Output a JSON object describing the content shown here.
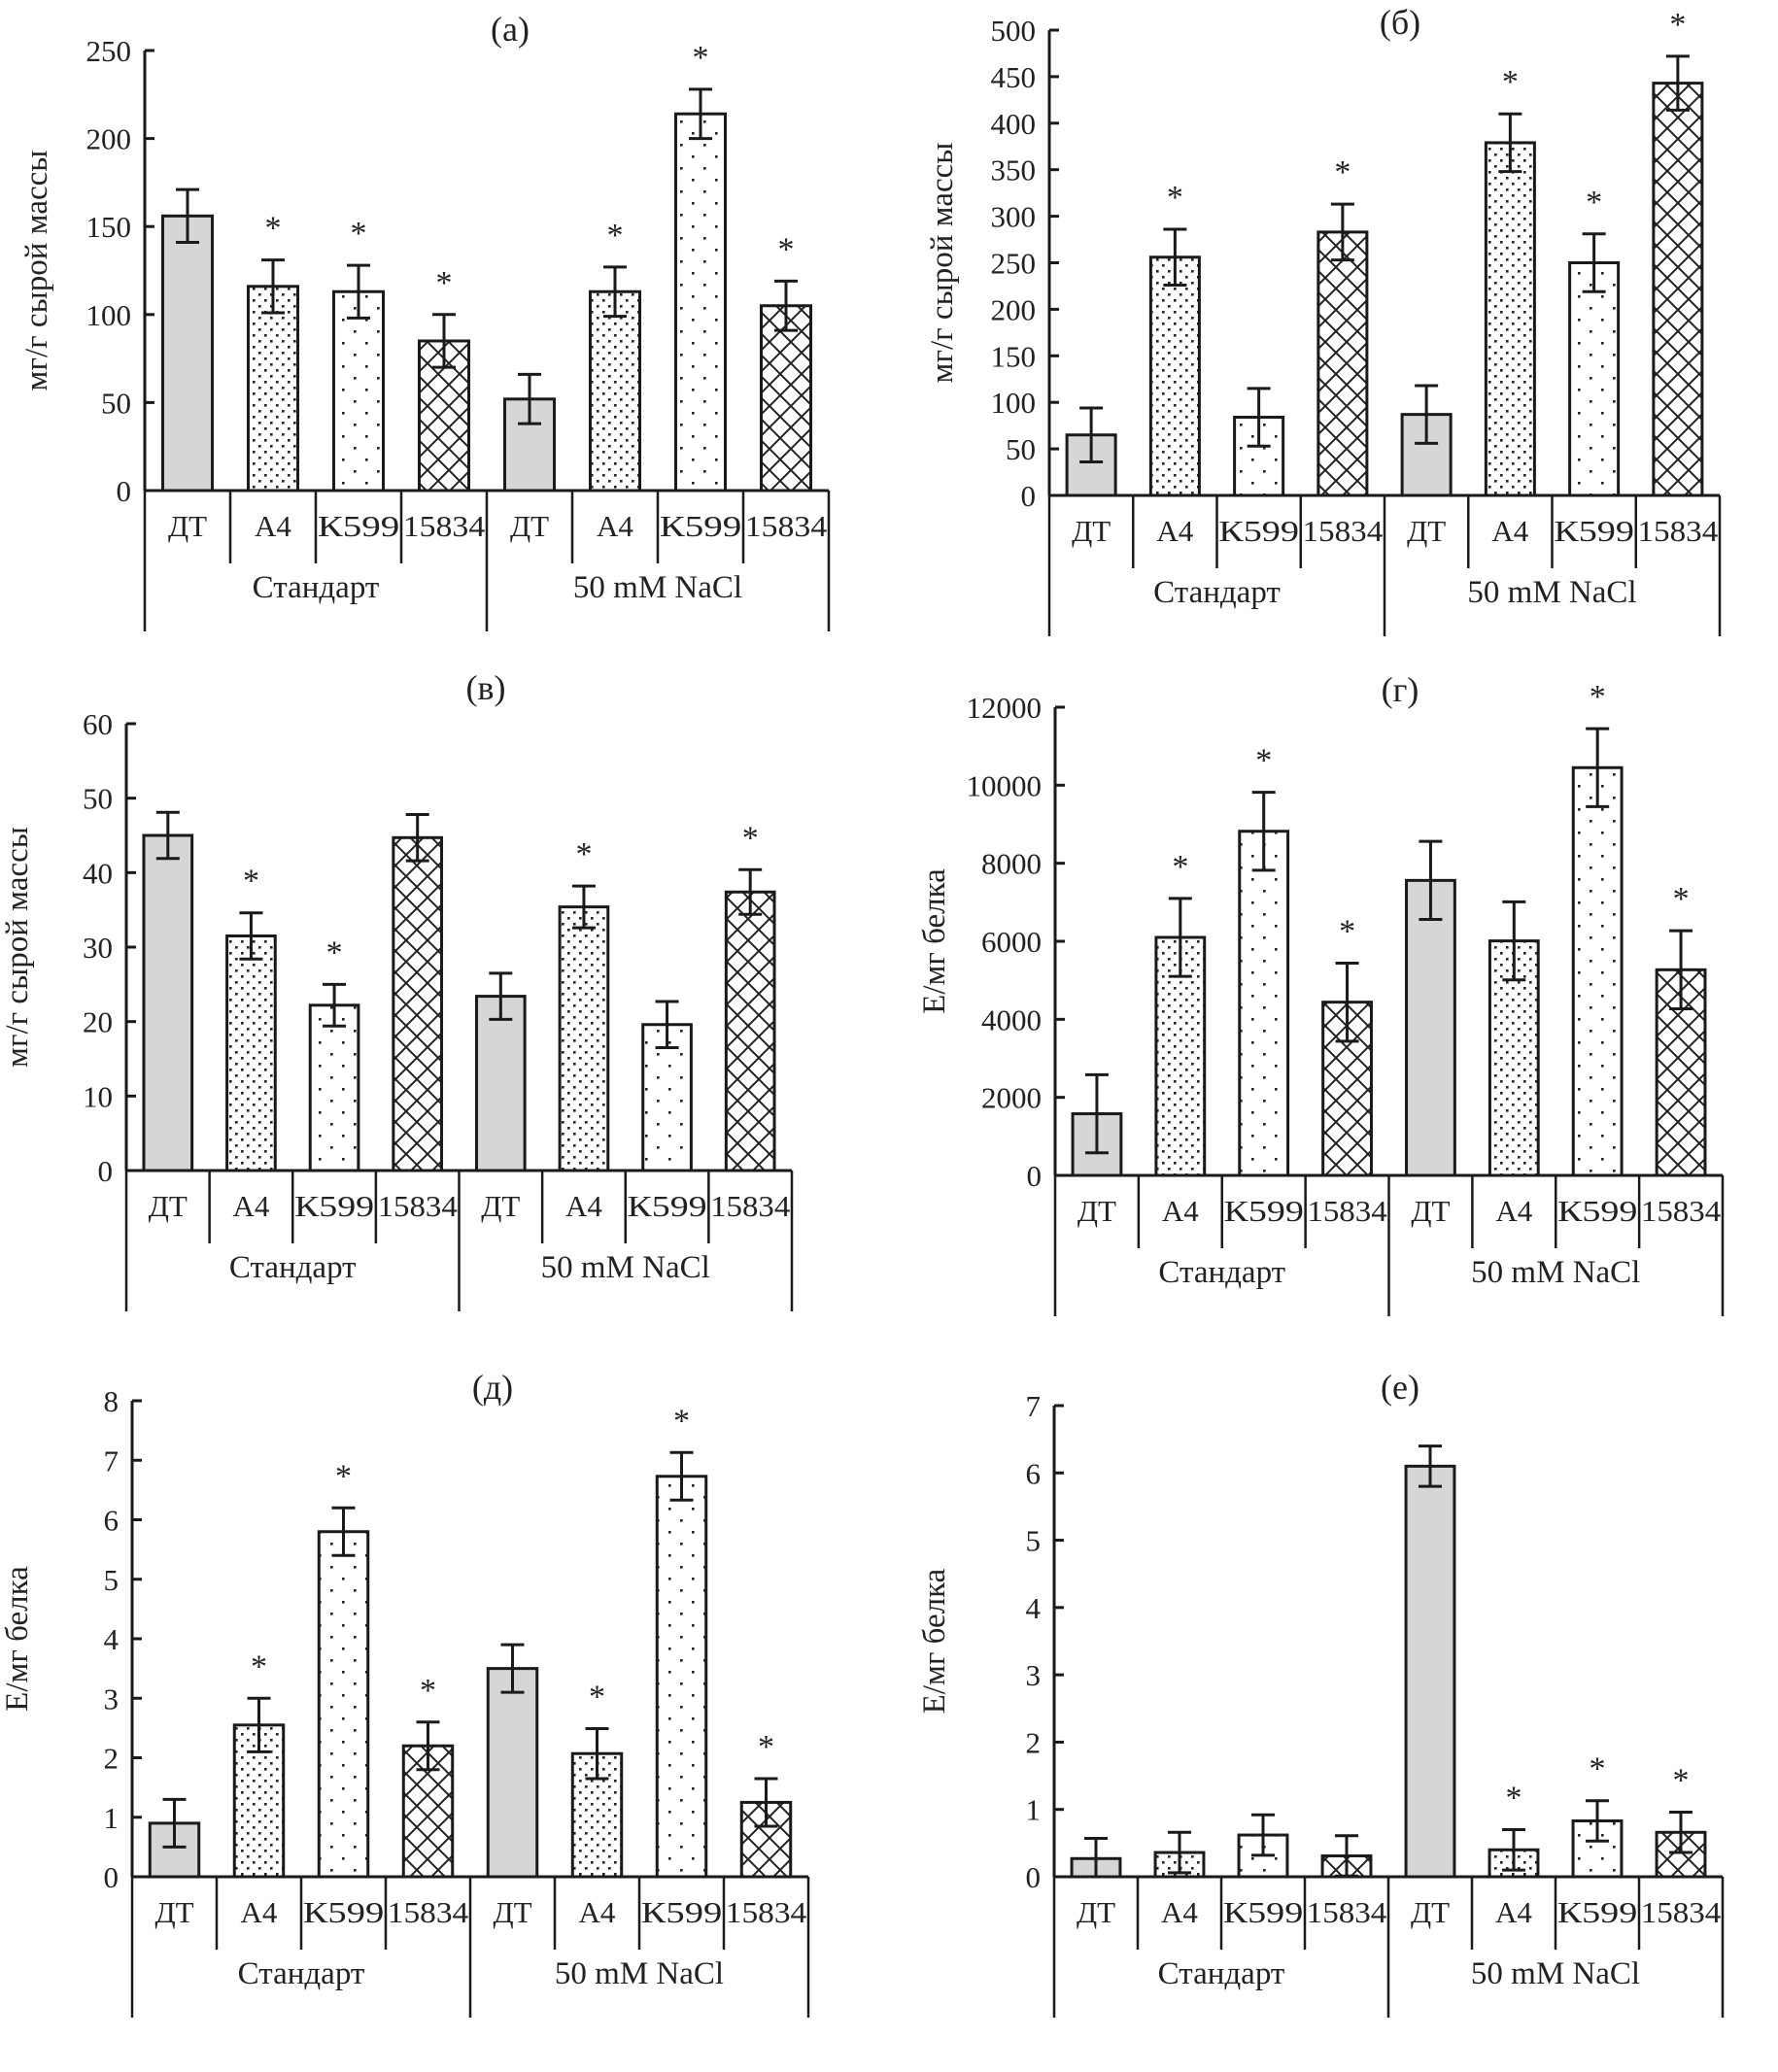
{
  "figure": {
    "categories": [
      "ДТ",
      "А4",
      "К599",
      "15834",
      "ДТ",
      "А4",
      "К599",
      "15834"
    ],
    "groups": [
      "Стандарт",
      "50 mM NaCl"
    ],
    "patterns": [
      "gray",
      "dense-dots",
      "sparse-dots",
      "crosshatch",
      "gray",
      "dense-dots",
      "sparse-dots",
      "crosshatch"
    ],
    "colors": {
      "gray_fill": "#d6d6d6",
      "stroke": "#1a1a1a"
    }
  },
  "chart_data": [
    {
      "type": "bar",
      "panel": "(а)",
      "title": "(а)",
      "ylabel": "мг/г сырой массы",
      "xlabel": "",
      "ylim": [
        0,
        250
      ],
      "yticks": [
        0,
        50,
        100,
        150,
        200,
        250
      ],
      "categories": [
        "ДТ",
        "А4",
        "К599",
        "15834",
        "ДТ",
        "А4",
        "К599",
        "15834"
      ],
      "groups": [
        "Стандарт",
        "50 mM NaCl"
      ],
      "values": [
        156,
        116,
        113,
        85,
        52,
        113,
        214,
        105
      ],
      "errors": [
        15,
        15,
        15,
        15,
        14,
        14,
        14,
        14
      ],
      "significant": [
        false,
        true,
        true,
        true,
        false,
        true,
        true,
        true
      ]
    },
    {
      "type": "bar",
      "panel": "(б)",
      "title": "(б)",
      "ylabel": "мг/г сырой массы",
      "xlabel": "",
      "ylim": [
        0,
        500
      ],
      "yticks": [
        0,
        50,
        100,
        150,
        200,
        250,
        300,
        350,
        400,
        450,
        500
      ],
      "categories": [
        "ДТ",
        "А4",
        "К599",
        "15834",
        "ДТ",
        "А4",
        "К599",
        "15834"
      ],
      "groups": [
        "Стандарт",
        "50 mM NaCl"
      ],
      "values": [
        65,
        256,
        84,
        283,
        87,
        379,
        250,
        443
      ],
      "errors": [
        29,
        30,
        31,
        30,
        31,
        31,
        31,
        29
      ],
      "significant": [
        false,
        true,
        false,
        true,
        false,
        true,
        true,
        true
      ]
    },
    {
      "type": "bar",
      "panel": "(в)",
      "title": "(в)",
      "ylabel": "мг/г сырой массы",
      "xlabel": "",
      "ylim": [
        0,
        60
      ],
      "yticks": [
        0,
        10,
        20,
        30,
        40,
        50,
        60
      ],
      "categories": [
        "ДТ",
        "А4",
        "К599",
        "15834",
        "ДТ",
        "А4",
        "К599",
        "15834"
      ],
      "groups": [
        "Стандарт",
        "50 mM NaCl"
      ],
      "values": [
        45,
        31.5,
        22.2,
        44.7,
        23.4,
        35.4,
        19.6,
        37.4
      ],
      "errors": [
        3.1,
        3.1,
        2.8,
        3.1,
        3.1,
        2.8,
        3.1,
        3.0
      ],
      "significant": [
        false,
        true,
        true,
        false,
        false,
        true,
        false,
        true
      ]
    },
    {
      "type": "bar",
      "panel": "(г)",
      "title": "(г)",
      "ylabel": "Е/мг белка",
      "xlabel": "",
      "ylim": [
        0,
        12000
      ],
      "yticks": [
        0,
        2000,
        4000,
        6000,
        8000,
        10000,
        12000
      ],
      "categories": [
        "ДТ",
        "А4",
        "К599",
        "15834",
        "ДТ",
        "А4",
        "К599",
        "15834"
      ],
      "groups": [
        "Стандарт",
        "50 mM NaCl"
      ],
      "values": [
        1580,
        6100,
        8820,
        4440,
        7560,
        6010,
        10450,
        5270
      ],
      "errors": [
        1000,
        1000,
        1000,
        1000,
        1000,
        1000,
        1000,
        1000
      ],
      "significant": [
        false,
        true,
        true,
        true,
        false,
        false,
        true,
        true
      ]
    },
    {
      "type": "bar",
      "panel": "(д)",
      "title": "(д)",
      "ylabel": "Е/мг белка",
      "xlabel": "",
      "ylim": [
        0,
        8
      ],
      "yticks": [
        0,
        1,
        2,
        3,
        4,
        5,
        6,
        7,
        8
      ],
      "categories": [
        "ДТ",
        "А4",
        "К599",
        "15834",
        "ДТ",
        "А4",
        "К599",
        "15834"
      ],
      "groups": [
        "Стандарт",
        "50 mM NaCl"
      ],
      "values": [
        0.9,
        2.55,
        5.8,
        2.2,
        3.5,
        2.07,
        6.73,
        1.25
      ],
      "errors": [
        0.4,
        0.45,
        0.4,
        0.4,
        0.4,
        0.42,
        0.4,
        0.4
      ],
      "significant": [
        false,
        true,
        true,
        true,
        false,
        true,
        true,
        true
      ]
    },
    {
      "type": "bar",
      "panel": "(е)",
      "title": "(е)",
      "ylabel": "Е/мг белка",
      "xlabel": "",
      "ylim": [
        0,
        7
      ],
      "yticks": [
        0,
        1,
        2,
        3,
        4,
        5,
        6,
        7
      ],
      "categories": [
        "ДТ",
        "А4",
        "К599",
        "15834",
        "ДТ",
        "А4",
        "К599",
        "15834"
      ],
      "groups": [
        "Стандарт",
        "50 mM NaCl"
      ],
      "values": [
        0.27,
        0.36,
        0.62,
        0.31,
        6.1,
        0.4,
        0.83,
        0.66
      ],
      "errors": [
        0.3,
        0.3,
        0.3,
        0.3,
        0.3,
        0.3,
        0.3,
        0.3
      ],
      "significant": [
        false,
        false,
        false,
        false,
        false,
        true,
        true,
        true
      ]
    }
  ]
}
